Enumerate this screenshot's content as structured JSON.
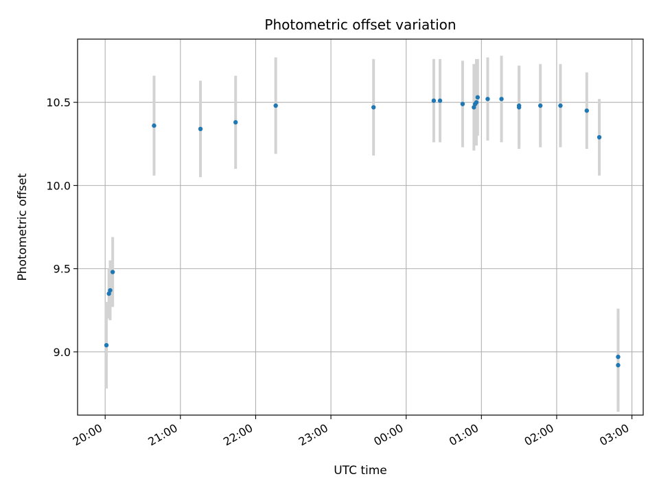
{
  "chart_data": {
    "type": "scatter",
    "title": "Photometric offset variation",
    "xlabel": "UTC time",
    "ylabel": "Photometric offset",
    "x_unit": "hours of UTC day (continuing past midnight)",
    "xlim": [
      "19:38",
      "03:09"
    ],
    "ylim": [
      8.62,
      10.88
    ],
    "x_ticks": [
      "20:00",
      "21:00",
      "22:00",
      "23:00",
      "00:00",
      "01:00",
      "02:00",
      "03:00"
    ],
    "y_ticks": [
      "9.0",
      "9.5",
      "10.0",
      "10.5"
    ],
    "grid": true,
    "point_color": "#1f77b4",
    "errorbar_color": "#d3d3d3",
    "points": [
      {
        "time": "20:01",
        "y": 9.04,
        "yerr": 0.26
      },
      {
        "time": "20:03",
        "y": 9.35,
        "yerr": 0.15
      },
      {
        "time": "20:04",
        "y": 9.37,
        "yerr": 0.18
      },
      {
        "time": "20:06",
        "y": 9.48,
        "yerr": 0.21
      },
      {
        "time": "20:39",
        "y": 10.36,
        "yerr": 0.3
      },
      {
        "time": "21:16",
        "y": 10.34,
        "yerr": 0.29
      },
      {
        "time": "21:44",
        "y": 10.38,
        "yerr": 0.28
      },
      {
        "time": "22:16",
        "y": 10.48,
        "yerr": 0.29
      },
      {
        "time": "23:34",
        "y": 10.47,
        "yerr": 0.29
      },
      {
        "time": "00:22",
        "y": 10.51,
        "yerr": 0.25
      },
      {
        "time": "00:27",
        "y": 10.51,
        "yerr": 0.25
      },
      {
        "time": "00:45",
        "y": 10.49,
        "yerr": 0.26
      },
      {
        "time": "00:54",
        "y": 10.47,
        "yerr": 0.26
      },
      {
        "time": "00:55",
        "y": 10.49,
        "yerr": 0.24
      },
      {
        "time": "00:56",
        "y": 10.5,
        "yerr": 0.26
      },
      {
        "time": "00:57",
        "y": 10.53,
        "yerr": 0.23
      },
      {
        "time": "01:05",
        "y": 10.52,
        "yerr": 0.25
      },
      {
        "time": "01:16",
        "y": 10.52,
        "yerr": 0.26
      },
      {
        "time": "01:30",
        "y": 10.48,
        "yerr": 0.24
      },
      {
        "time": "01:30",
        "y": 10.47,
        "yerr": 0.25
      },
      {
        "time": "01:47",
        "y": 10.48,
        "yerr": 0.25
      },
      {
        "time": "02:03",
        "y": 10.48,
        "yerr": 0.25
      },
      {
        "time": "02:24",
        "y": 10.45,
        "yerr": 0.23
      },
      {
        "time": "02:34",
        "y": 10.29,
        "yerr": 0.23
      },
      {
        "time": "02:49",
        "y": 8.97,
        "yerr": 0.29
      },
      {
        "time": "02:49",
        "y": 8.92,
        "yerr": 0.28
      }
    ]
  }
}
